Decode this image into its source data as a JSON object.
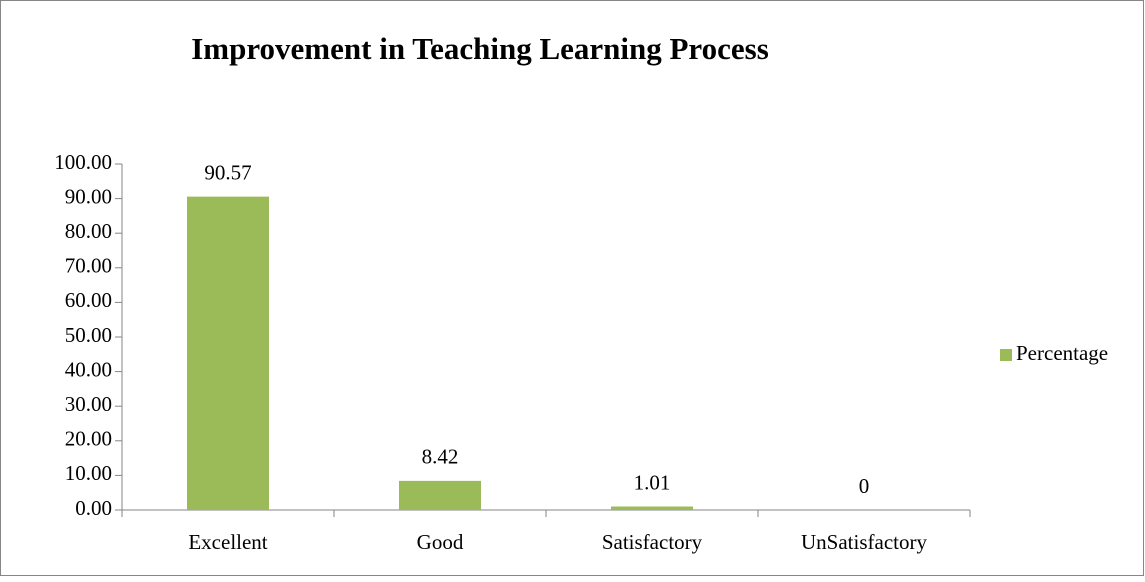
{
  "chart_data": {
    "type": "bar",
    "title": "Improvement in Teaching Learning Process",
    "categories": [
      "Excellent",
      "Good",
      "Satisfactory",
      "UnSatisfactory"
    ],
    "series": [
      {
        "name": "Percentage",
        "color": "#9bbb59",
        "values": [
          90.57,
          8.42,
          1.01,
          0
        ]
      }
    ],
    "ylim": [
      0,
      100
    ],
    "yticks": [
      {
        "value": 0,
        "label": "0.00"
      },
      {
        "value": 10,
        "label": "10.00"
      },
      {
        "value": 20,
        "label": "20.00"
      },
      {
        "value": 30,
        "label": "30.00"
      },
      {
        "value": 40,
        "label": "40.00"
      },
      {
        "value": 50,
        "label": "50.00"
      },
      {
        "value": 60,
        "label": "60.00"
      },
      {
        "value": 70,
        "label": "70.00"
      },
      {
        "value": 80,
        "label": "80.00"
      },
      {
        "value": 90,
        "label": "90.00"
      },
      {
        "value": 100,
        "label": "100.00"
      }
    ],
    "legend": "right",
    "grid": false
  }
}
